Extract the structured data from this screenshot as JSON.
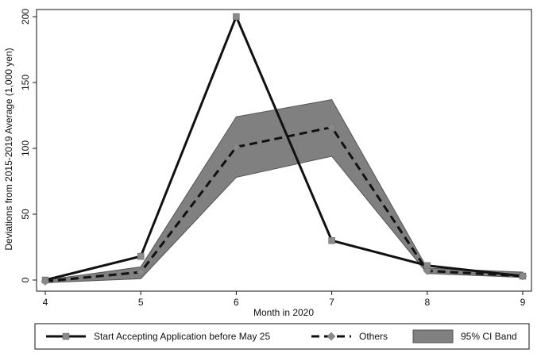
{
  "chart_data": {
    "type": "line",
    "xlabel": "Month in 2020",
    "ylabel": "Deviations from 2015-2019 Average (1,000 yen)",
    "x": [
      4,
      5,
      6,
      7,
      8,
      9
    ],
    "xlim": [
      4,
      9
    ],
    "ylim": [
      0,
      200
    ],
    "yticks": [
      0,
      50,
      100,
      150,
      200
    ],
    "xticks": [
      4,
      5,
      6,
      7,
      8,
      9
    ],
    "grid": false,
    "legend_position": "bottom",
    "series": [
      {
        "name": "Start Accepting Application before May 25",
        "values": [
          0,
          18,
          200,
          30,
          11,
          3
        ],
        "style": "solid",
        "marker": "square",
        "color": "#111111"
      },
      {
        "name": "Others",
        "values": [
          -1,
          6,
          101,
          116,
          7,
          3
        ],
        "style": "dashed",
        "marker": "diamond",
        "color": "#111111"
      }
    ],
    "band": {
      "name": "95% CI Band",
      "lower": [
        -2,
        1,
        78,
        94,
        5,
        2
      ],
      "upper": [
        0,
        10,
        124,
        137,
        9,
        6
      ],
      "color": "#808080"
    }
  }
}
